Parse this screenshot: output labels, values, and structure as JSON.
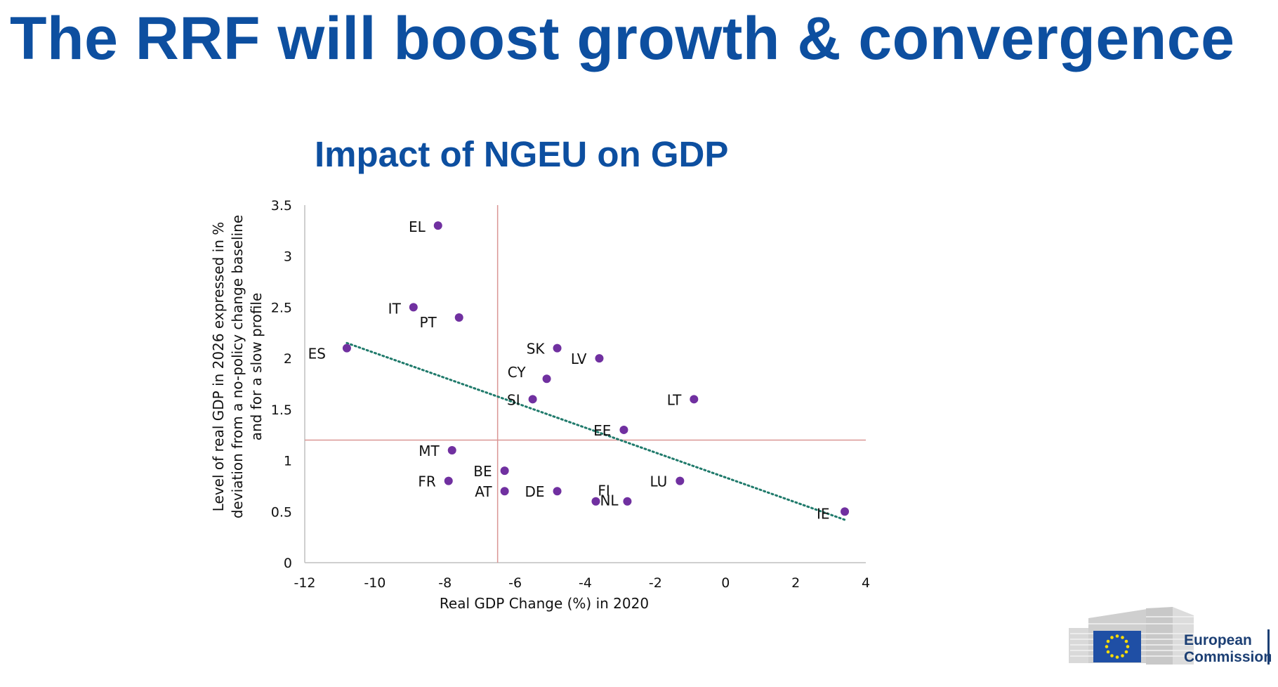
{
  "slide": {
    "title": "The RRF will boost growth & convergence"
  },
  "logo": {
    "line1": "European",
    "line2": "Commission"
  },
  "colors": {
    "title": "#0d4fa0",
    "point": "#7030a0",
    "trend": "#1f7a6b",
    "ref_line": "#d99694",
    "axis": "#bfbfbf"
  },
  "chart_data": {
    "type": "scatter",
    "title": "Impact of NGEU on GDP",
    "xlabel": "Real GDP Change (%) in 2020",
    "ylabel_lines": [
      "Level of real GDP in 2026 expressed in %",
      "deviation from a no-policy change baseline",
      "and for a slow profile"
    ],
    "xlim": [
      -12,
      4
    ],
    "ylim": [
      0,
      3.5
    ],
    "xticks": [
      -12,
      -10,
      -8,
      -6,
      -4,
      -2,
      0,
      2,
      4
    ],
    "yticks": [
      0,
      0.5,
      1,
      1.5,
      2,
      2.5,
      3,
      3.5
    ],
    "xtick_labels": [
      "-12",
      "-10",
      "-8",
      "-6",
      "-4",
      "-2",
      "0",
      "2",
      "4"
    ],
    "ytick_labels": [
      "0",
      "0.5",
      "1",
      "1.5",
      "2",
      "2.5",
      "3",
      "3.5"
    ],
    "reference_lines": {
      "x": -6.5,
      "y": 1.2
    },
    "trendline": {
      "x": [
        -10.8,
        3.4
      ],
      "y": [
        2.15,
        0.42
      ]
    },
    "points": [
      {
        "label": "EL",
        "x": -8.2,
        "y": 3.3
      },
      {
        "label": "IT",
        "x": -8.9,
        "y": 2.5
      },
      {
        "label": "PT",
        "x": -7.6,
        "y": 2.4
      },
      {
        "label": "ES",
        "x": -10.8,
        "y": 2.1
      },
      {
        "label": "SK",
        "x": -4.8,
        "y": 2.1
      },
      {
        "label": "LV",
        "x": -3.6,
        "y": 2.0
      },
      {
        "label": "CY",
        "x": -5.1,
        "y": 1.8
      },
      {
        "label": "SI",
        "x": -5.5,
        "y": 1.6
      },
      {
        "label": "LT",
        "x": -0.9,
        "y": 1.6
      },
      {
        "label": "EE",
        "x": -2.9,
        "y": 1.3
      },
      {
        "label": "MT",
        "x": -7.8,
        "y": 1.1
      },
      {
        "label": "BE",
        "x": -6.3,
        "y": 0.9
      },
      {
        "label": "FR",
        "x": -7.9,
        "y": 0.8
      },
      {
        "label": "LU",
        "x": -1.3,
        "y": 0.8
      },
      {
        "label": "AT",
        "x": -6.3,
        "y": 0.7
      },
      {
        "label": "DE",
        "x": -4.8,
        "y": 0.7
      },
      {
        "label": "NL",
        "x": -3.7,
        "y": 0.6
      },
      {
        "label": "FI",
        "x": -2.8,
        "y": 0.6
      },
      {
        "label": "IE",
        "x": 3.4,
        "y": 0.5
      }
    ]
  }
}
